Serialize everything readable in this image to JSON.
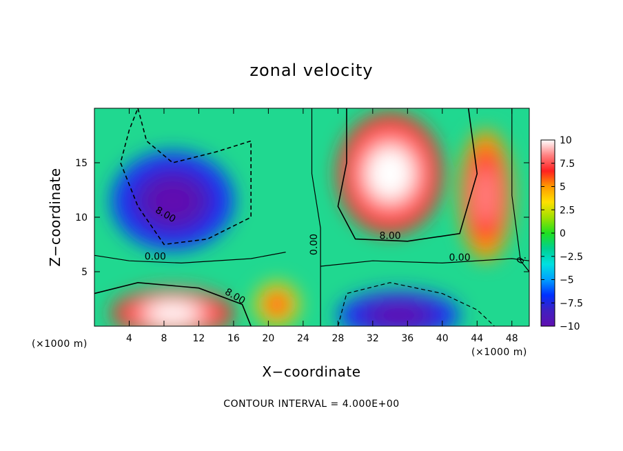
{
  "chart_data": {
    "type": "heatmap",
    "title": "zonal velocity",
    "xlabel": "X−coordinate",
    "ylabel": "Z−coordinate",
    "x_unit_label": "(×1000 m)",
    "x_ticks": [
      4,
      8,
      12,
      16,
      20,
      24,
      28,
      32,
      36,
      40,
      44,
      48
    ],
    "y_ticks": [
      5,
      10,
      15
    ],
    "xlim": [
      0,
      50
    ],
    "ylim": [
      0,
      20
    ],
    "colorbar": {
      "ticks": [
        10,
        7.5,
        5,
        2.5,
        0,
        -2.5,
        -5,
        -7.5,
        -10
      ],
      "tick_labels": [
        "10",
        "7.5",
        "5",
        "2.5",
        "0",
        "−2.5",
        "−5",
        "−7.5",
        "−10"
      ],
      "range": [
        -10,
        10
      ],
      "colors_high_to_low": [
        "#ffffff",
        "#ff8080",
        "#ff2020",
        "#ff9a00",
        "#ffe000",
        "#a0e000",
        "#20e020",
        "#00d090",
        "#00e0e0",
        "#00a0ff",
        "#0030ff",
        "#4020c0",
        "#6010b0"
      ]
    },
    "contour_interval_text": "CONTOUR INTERVAL = 4.000E+00",
    "contour_labels": [
      "8.00",
      "0.00",
      "0.00",
      "8.00",
      "0.00",
      "8.00",
      "0."
    ],
    "features": [
      {
        "x": 9,
        "z": 11.5,
        "u": -12
      },
      {
        "x": 34,
        "z": 14,
        "u": 12
      },
      {
        "x": 9,
        "z": 1.2,
        "u": 12
      },
      {
        "x": 35,
        "z": 1,
        "u": -12
      },
      {
        "x": 21,
        "z": 2,
        "u": 7
      },
      {
        "x": 45,
        "z": 12,
        "u": 8
      }
    ]
  }
}
